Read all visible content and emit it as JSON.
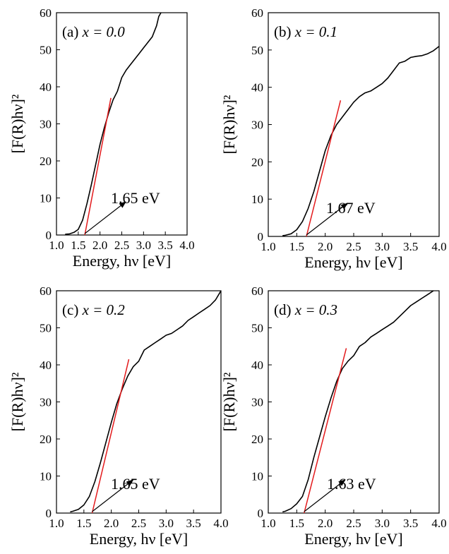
{
  "chart_data": [
    {
      "type": "line",
      "panel_label": "(a)",
      "composition": "x = 0.0",
      "xlabel": "Energy, hν [eV]",
      "ylabel": "[F(R)hν]²",
      "xlim": [
        1.0,
        4.0
      ],
      "ylim": [
        0,
        60
      ],
      "xticks": [
        "1.0",
        "1.5",
        "2.0",
        "2.5",
        "3.0",
        "3.5",
        "4.0"
      ],
      "yticks": [
        "0",
        "10",
        "20",
        "30",
        "40",
        "50",
        "60"
      ],
      "series": [
        {
          "color": "#000000",
          "x": [
            1.2,
            1.3,
            1.4,
            1.5,
            1.6,
            1.7,
            1.8,
            1.9,
            2.0,
            2.1,
            2.2,
            2.3,
            2.4,
            2.5,
            2.6,
            2.7,
            2.8,
            2.9,
            3.0,
            3.1,
            3.2,
            3.3,
            3.35,
            3.4
          ],
          "y": [
            0.2,
            0.3,
            0.7,
            1.5,
            4,
            8.5,
            13.5,
            19,
            24.5,
            29,
            33,
            36.5,
            38.8,
            42.5,
            44.5,
            46,
            47.5,
            49,
            50.5,
            52,
            53.5,
            56.5,
            59,
            60
          ]
        },
        {
          "color": "#e31a1c",
          "x": [
            1.65,
            2.25
          ],
          "y": [
            0,
            37
          ]
        }
      ],
      "annotation": {
        "text": "1.65 eV",
        "x": 1.65
      }
    },
    {
      "type": "line",
      "panel_label": "(b)",
      "composition": "x = 0.1",
      "xlabel": "Energy, hν [eV]",
      "ylabel": "[F(R)hν]²",
      "xlim": [
        1.0,
        4.0
      ],
      "ylim": [
        0,
        60
      ],
      "xticks": [
        "1.0",
        "1.5",
        "2.0",
        "2.5",
        "3.0",
        "3.5",
        "4.0"
      ],
      "yticks": [
        "0",
        "10",
        "20",
        "30",
        "40",
        "50",
        "60"
      ],
      "series": [
        {
          "color": "#000000",
          "x": [
            1.25,
            1.3,
            1.4,
            1.5,
            1.6,
            1.7,
            1.8,
            1.9,
            2.0,
            2.1,
            2.2,
            2.3,
            2.4,
            2.5,
            2.6,
            2.7,
            2.8,
            2.9,
            3.0,
            3.1,
            3.2,
            3.3,
            3.4,
            3.5,
            3.6,
            3.7,
            3.8,
            3.9,
            4.0
          ],
          "y": [
            0.2,
            0.3,
            0.7,
            1.8,
            4,
            7.5,
            12,
            17.5,
            23,
            27,
            30,
            32,
            34,
            36,
            37.5,
            38.5,
            39,
            40,
            41,
            42.5,
            44.5,
            46.5,
            47,
            48,
            48.3,
            48.5,
            49,
            49.8,
            51
          ]
        },
        {
          "color": "#e31a1c",
          "x": [
            1.67,
            2.27
          ],
          "y": [
            0,
            36.5
          ]
        }
      ],
      "annotation": {
        "text": "1.67 eV",
        "x": 1.67
      }
    },
    {
      "type": "line",
      "panel_label": "(c)",
      "composition": "x = 0.2",
      "xlabel": "Energy, hν [eV]",
      "ylabel": "[F(R)hν]²",
      "xlim": [
        1.0,
        4.0
      ],
      "ylim": [
        0,
        60
      ],
      "xticks": [
        "1.0",
        "1.5",
        "2.0",
        "2.5",
        "3.0",
        "3.5",
        "4.0"
      ],
      "yticks": [
        "0",
        "10",
        "20",
        "30",
        "40",
        "50",
        "60"
      ],
      "series": [
        {
          "color": "#000000",
          "x": [
            1.25,
            1.3,
            1.4,
            1.5,
            1.6,
            1.7,
            1.8,
            1.9,
            2.0,
            2.1,
            2.2,
            2.3,
            2.4,
            2.5,
            2.6,
            2.7,
            2.8,
            2.9,
            3.0,
            3.1,
            3.2,
            3.3,
            3.4,
            3.5,
            3.6,
            3.7,
            3.8,
            3.9,
            4.0
          ],
          "y": [
            0.3,
            0.5,
            1,
            2.2,
            4.5,
            8.5,
            13.5,
            19,
            24.5,
            29.5,
            33.5,
            37,
            39.5,
            41,
            44,
            45,
            46,
            47,
            48,
            48.5,
            49.5,
            50.5,
            52,
            53,
            54,
            55,
            56,
            57.5,
            60
          ]
        },
        {
          "color": "#e31a1c",
          "x": [
            1.65,
            2.32
          ],
          "y": [
            0,
            41.5
          ]
        }
      ],
      "annotation": {
        "text": "1.65 eV",
        "x": 1.65
      }
    },
    {
      "type": "line",
      "panel_label": "(d)",
      "composition": "x = 0.3",
      "xlabel": "Energy, hν [eV]",
      "ylabel": "[F(R)hν]²",
      "xlim": [
        1.0,
        4.0
      ],
      "ylim": [
        0,
        60
      ],
      "xticks": [
        "1.0",
        "1.5",
        "2.0",
        "2.5",
        "3.0",
        "3.5",
        "4.0"
      ],
      "yticks": [
        "0",
        "10",
        "20",
        "30",
        "40",
        "50",
        "60"
      ],
      "series": [
        {
          "color": "#000000",
          "x": [
            1.25,
            1.3,
            1.4,
            1.5,
            1.6,
            1.7,
            1.8,
            1.9,
            2.0,
            2.1,
            2.2,
            2.3,
            2.4,
            2.5,
            2.6,
            2.7,
            2.8,
            2.9,
            3.0,
            3.1,
            3.2,
            3.3,
            3.4,
            3.5,
            3.6,
            3.7,
            3.8,
            3.9
          ],
          "y": [
            0.3,
            0.5,
            1.2,
            2.5,
            4.5,
            9,
            15,
            20.5,
            26,
            31,
            35.5,
            39,
            41,
            42.5,
            45,
            46,
            47.5,
            48.5,
            49.5,
            50.5,
            51.5,
            53,
            54.5,
            56,
            57,
            58,
            59,
            60
          ]
        },
        {
          "color": "#e31a1c",
          "x": [
            1.63,
            2.37
          ],
          "y": [
            0,
            44.5
          ]
        }
      ],
      "annotation": {
        "text": "1.63 eV",
        "x": 1.63
      }
    }
  ]
}
